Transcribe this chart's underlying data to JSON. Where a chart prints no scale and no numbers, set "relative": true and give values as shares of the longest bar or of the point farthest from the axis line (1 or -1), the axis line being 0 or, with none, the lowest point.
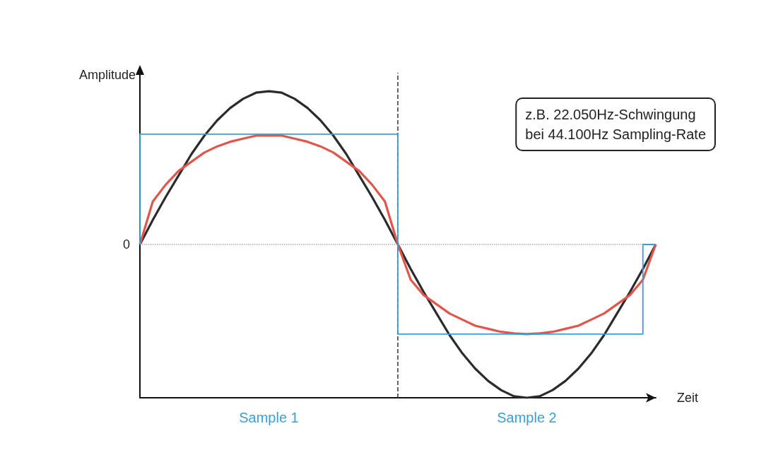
{
  "chart_data": {
    "type": "line",
    "relative": true,
    "xlabel": "Zeit",
    "ylabel": "Amplitude",
    "marker": "none",
    "annotations": [
      "z.B. 22.050Hz-Schwingung\nbei 44.100Hz Sampling-Rate"
    ],
    "categories": [
      null,
      null,
      null,
      null,
      null,
      null,
      null,
      null,
      null,
      null,
      "Sample 1",
      null,
      null,
      null,
      null,
      null,
      null,
      null,
      null,
      null,
      null,
      null,
      null,
      null,
      null,
      null,
      null,
      null,
      null,
      null,
      "Sample 2",
      null,
      null,
      null,
      null,
      null,
      null,
      null,
      null,
      null,
      null
    ],
    "series": [
      {
        "color": "#2b2b2b",
        "values": [
          0,
          0.16,
          0.31,
          0.45,
          0.59,
          0.71,
          0.81,
          0.89,
          0.95,
          0.99,
          1,
          0.99,
          0.95,
          0.89,
          0.81,
          0.71,
          0.59,
          0.45,
          0.31,
          0.16,
          0,
          -0.16,
          -0.31,
          -0.45,
          -0.59,
          -0.71,
          -0.81,
          -0.89,
          -0.95,
          -0.99,
          -1,
          -0.99,
          -0.95,
          -0.89,
          -0.81,
          -0.71,
          -0.59,
          -0.45,
          -0.31,
          -0.16,
          0
        ]
      },
      {
        "color": "#e0564a",
        "values": [
          0,
          0.28,
          0.39,
          0.48,
          0.54,
          0.6,
          0.64,
          0.67,
          0.69,
          0.71,
          0.71,
          0.71,
          0.69,
          0.67,
          0.64,
          0.6,
          0.54,
          0.48,
          0.39,
          0.28,
          0,
          -0.23,
          -0.33,
          -0.39,
          -0.45,
          -0.49,
          -0.53,
          -0.55,
          -0.57,
          -0.58,
          -0.585,
          -0.58,
          -0.57,
          -0.55,
          -0.53,
          -0.49,
          -0.45,
          -0.39,
          -0.33,
          -0.23,
          0
        ]
      },
      {
        "type": "step",
        "color": "#3a9fd5",
        "values": [
          0,
          0.72,
          0.72,
          0.72,
          0.72,
          0.72,
          0.72,
          0.72,
          0.72,
          0.72,
          0.72,
          0.72,
          0.72,
          0.72,
          0.72,
          0.72,
          0.72,
          0.72,
          0.72,
          0.72,
          0.72,
          -0.585,
          -0.585,
          -0.585,
          -0.585,
          -0.585,
          -0.585,
          -0.585,
          -0.585,
          -0.585,
          -0.585,
          -0.585,
          -0.585,
          -0.585,
          -0.585,
          -0.585,
          -0.585,
          -0.585,
          -0.585,
          -0.585,
          0
        ]
      }
    ],
    "ref_lines": [
      {
        "axis": "y",
        "value": 0,
        "label": "0",
        "line_style": "dotted",
        "color": "#aaaaaa"
      }
    ]
  }
}
